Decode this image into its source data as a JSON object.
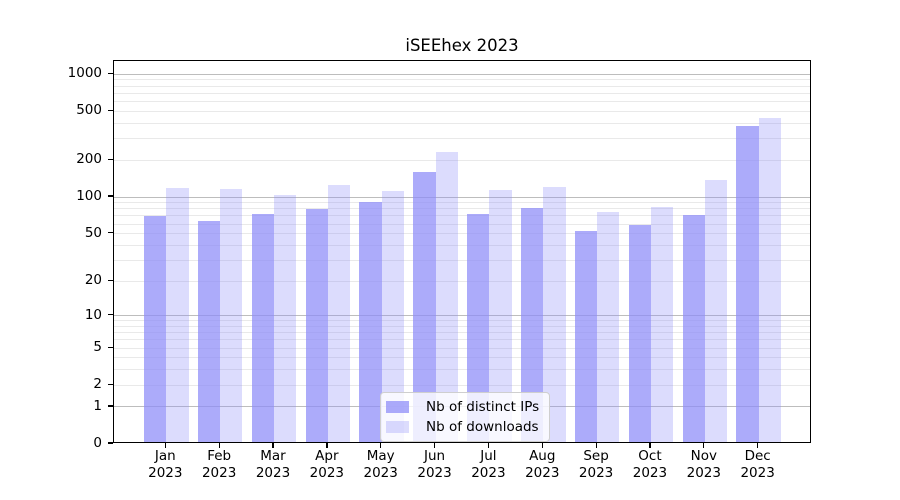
{
  "chart_data": {
    "type": "bar",
    "title": "iSEEhex 2023",
    "x": {
      "months": [
        "Jan",
        "Feb",
        "Mar",
        "Apr",
        "May",
        "Jun",
        "Jul",
        "Aug",
        "Sep",
        "Oct",
        "Nov",
        "Dec"
      ],
      "year": "2023"
    },
    "series": [
      {
        "name": "Nb of distinct IPs",
        "color": "rgba(140,138,248,0.72)",
        "values": [
          67,
          61,
          70,
          77,
          87,
          155,
          70,
          79,
          51,
          57,
          68,
          363
        ]
      },
      {
        "name": "Nb of downloads",
        "color": "rgba(140,138,248,0.30)",
        "values": [
          114,
          112,
          100,
          122,
          107,
          225,
          110,
          116,
          73,
          80,
          133,
          424
        ]
      }
    ],
    "y_axis": {
      "scale": "log1p",
      "ticks": [
        0,
        1,
        2,
        5,
        10,
        20,
        50,
        100,
        200,
        500,
        1000
      ],
      "ylim": [
        0,
        1275
      ]
    },
    "grid": true,
    "legend": {
      "position": "lower center",
      "entries": [
        "Nb of distinct IPs",
        "Nb of downloads"
      ]
    }
  }
}
